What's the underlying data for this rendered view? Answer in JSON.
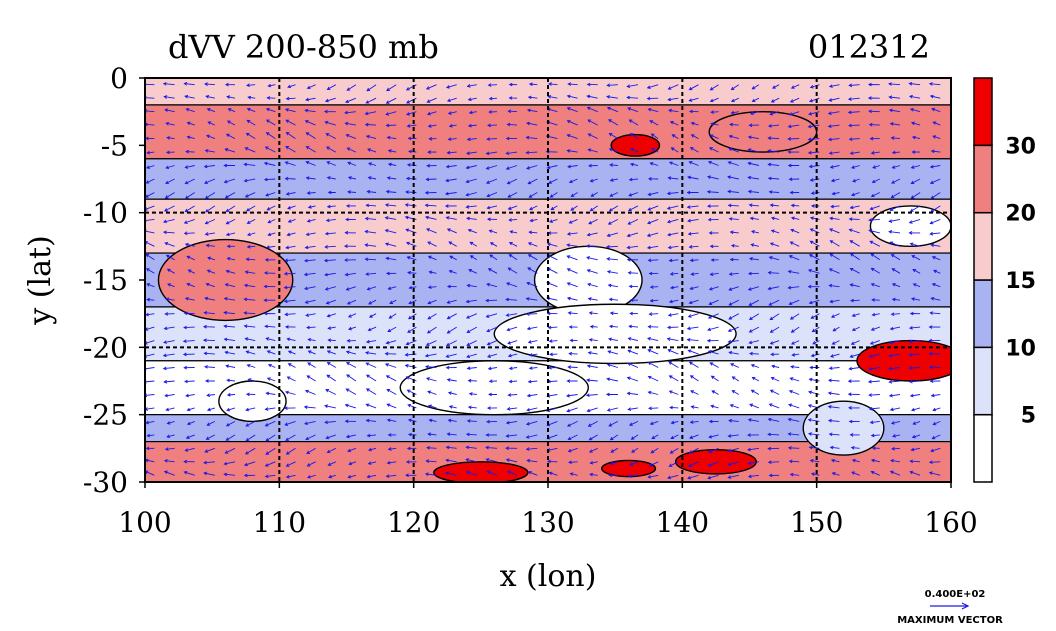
{
  "chart_data": {
    "type": "heatmap",
    "title": "dVV 200-850 mb",
    "title_right": "012312",
    "xlabel": "x (lon)",
    "ylabel": "y (lat)",
    "xlim": [
      100,
      160
    ],
    "ylim": [
      -30,
      0
    ],
    "x_ticks": [
      "100",
      "110",
      "120",
      "130",
      "140",
      "150",
      "160"
    ],
    "y_ticks": [
      "0",
      "-5",
      "-10",
      "-15",
      "-20",
      "-25",
      "-30"
    ],
    "grid": true,
    "grid_lines_lon": [
      110,
      120,
      130,
      140,
      150
    ],
    "grid_lines_lat": [
      -10,
      -20
    ],
    "colorbar": {
      "placement": "right",
      "levels": [
        "5",
        "10",
        "15",
        "20",
        "30"
      ],
      "bins": [
        {
          "range": [
            0,
            5
          ],
          "color": "#ffffff"
        },
        {
          "range": [
            5,
            10
          ],
          "color": "#dde2fb"
        },
        {
          "range": [
            10,
            15
          ],
          "color": "#a9b3f1"
        },
        {
          "range": [
            15,
            20
          ],
          "color": "#f8cccc"
        },
        {
          "range": [
            20,
            30
          ],
          "color": "#f07f7f"
        },
        {
          "range": [
            30,
            40
          ],
          "color": "#ee0000"
        }
      ]
    },
    "field_bands": [
      {
        "lat": [
          0,
          -2
        ],
        "value": 18
      },
      {
        "lat": [
          -2,
          -6
        ],
        "value": 22
      },
      {
        "lat": [
          -6,
          -9
        ],
        "value": 12
      },
      {
        "lat": [
          -9,
          -13
        ],
        "value": 17
      },
      {
        "lat": [
          -13,
          -17
        ],
        "value": 12
      },
      {
        "lat": [
          -17,
          -21
        ],
        "value": 8
      },
      {
        "lat": [
          -21,
          -25
        ],
        "value": 3
      },
      {
        "lat": [
          -25,
          -27
        ],
        "value": 12
      },
      {
        "lat": [
          -27,
          -30
        ],
        "value": 22
      }
    ],
    "features": [
      {
        "lon": 133,
        "lat": -15,
        "rx": 4,
        "ry": 2.5,
        "value": 3
      },
      {
        "lon": 135,
        "lat": -19,
        "rx": 9,
        "ry": 2.2,
        "value": 2
      },
      {
        "lon": 126,
        "lat": -23,
        "rx": 7,
        "ry": 2,
        "value": 2
      },
      {
        "lon": 108,
        "lat": -24,
        "rx": 2.5,
        "ry": 1.5,
        "value": 3
      },
      {
        "lon": 106,
        "lat": -15,
        "rx": 5,
        "ry": 3,
        "value": 22
      },
      {
        "lon": 157,
        "lat": -21,
        "rx": 4,
        "ry": 1.5,
        "value": 35
      },
      {
        "lon": 152,
        "lat": -26,
        "rx": 3,
        "ry": 2,
        "value": 7
      },
      {
        "lon": 136.5,
        "lat": -5,
        "rx": 1.8,
        "ry": 0.8,
        "value": 35
      },
      {
        "lon": 125,
        "lat": -29.3,
        "rx": 3.5,
        "ry": 0.8,
        "value": 35
      },
      {
        "lon": 136,
        "lat": -29,
        "rx": 2,
        "ry": 0.6,
        "value": 35
      },
      {
        "lon": 142.5,
        "lat": -28.5,
        "rx": 3,
        "ry": 0.9,
        "value": 35
      },
      {
        "lon": 146,
        "lat": -4,
        "rx": 4,
        "ry": 1.5,
        "value": 22
      },
      {
        "lon": 157,
        "lat": -11,
        "rx": 3,
        "ry": 1.5,
        "value": 3
      }
    ],
    "vectors": {
      "spacing_lon": 1.5,
      "spacing_lat": 1.0,
      "color": "#1a1ae6",
      "reference_label": "0.400E+02",
      "reference_caption": "MAXIMUM VECTOR"
    }
  }
}
